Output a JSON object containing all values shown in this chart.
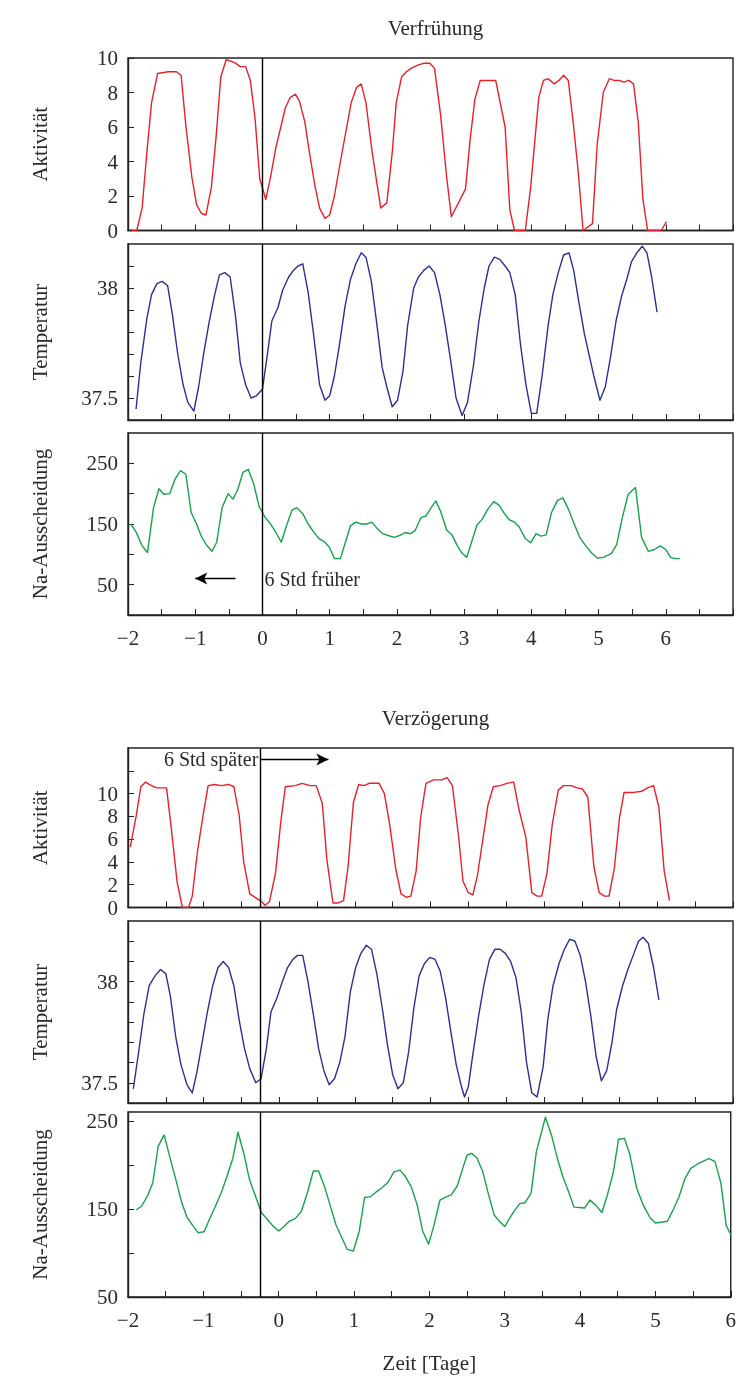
{
  "chart_data": [
    {
      "type": "line",
      "title": "Verfrühung",
      "ylabel": "Aktivität",
      "tick_labels": "y",
      "xlim": [
        -2,
        7
      ],
      "xticks": [
        -2,
        {
          "value": -1.5,
          "label": null
        },
        -1,
        {
          "value": -0.5,
          "label": null
        },
        0,
        {
          "value": 0.5,
          "label": null
        },
        1,
        {
          "value": 1.5,
          "label": null
        },
        2,
        {
          "value": 2.5,
          "label": null
        },
        3,
        {
          "value": 3.5,
          "label": null
        },
        4,
        {
          "value": 4.5,
          "label": null
        },
        5,
        {
          "value": 5.5,
          "label": null
        },
        6,
        {
          "value": 6.5,
          "label": null
        },
        {
          "value": 7,
          "label": null
        }
      ],
      "ylim": [
        0,
        10
      ],
      "yticks": [
        0,
        2,
        4,
        6,
        8,
        10
      ],
      "ref_lines": [
        {
          "axis": "x",
          "value": 0,
          "color": "#000000"
        }
      ],
      "series": [
        {
          "color": "#e8202a",
          "x": [
            -1.94,
            -1.87,
            -1.79,
            -1.72,
            -1.65,
            -1.56,
            -1.4,
            -1.28,
            -1.21,
            -1.14,
            -1.05,
            -0.98,
            -0.91,
            -0.84,
            -0.76,
            -0.69,
            -0.62,
            -0.54,
            -0.46,
            -0.4,
            -0.33,
            -0.25,
            -0.18,
            -0.11,
            -0.04,
            0.05,
            0.12,
            0.2,
            0.34,
            0.41,
            0.49,
            0.55,
            0.63,
            0.7,
            0.78,
            0.85,
            0.93,
            1.0,
            1.07,
            1.16,
            1.32,
            1.4,
            1.47,
            1.54,
            1.63,
            1.7,
            1.76,
            1.85,
            1.93,
            1.99,
            2.07,
            2.14,
            2.21,
            2.32,
            2.41,
            2.49,
            2.56,
            2.65,
            2.74,
            2.81,
            3.02,
            3.09,
            3.16,
            3.24,
            3.47,
            3.61,
            3.68,
            3.75,
            3.91,
            3.99,
            4.11,
            4.18,
            4.25,
            4.34,
            4.41,
            4.48,
            4.55,
            4.63,
            4.7,
            4.77,
            4.91,
            4.98,
            5.07,
            5.16,
            5.23,
            5.31,
            5.38,
            5.45,
            5.52,
            5.59,
            5.66,
            5.73,
            5.93,
            6.01
          ],
          "values": [
            0,
            0,
            1.3,
            4.5,
            7.4,
            9.1,
            9.2,
            9.2,
            9.0,
            6.1,
            3.1,
            1.5,
            1.0,
            0.9,
            2.5,
            5.4,
            8.9,
            9.9,
            9.8,
            9.7,
            9.5,
            9.5,
            8.7,
            6.5,
            3.0,
            1.8,
            3.1,
            4.8,
            7.1,
            7.7,
            7.9,
            7.5,
            6.3,
            4.5,
            2.6,
            1.3,
            0.7,
            0.9,
            2.0,
            4.0,
            7.4,
            8.3,
            8.5,
            7.4,
            4.6,
            2.8,
            1.3,
            1.6,
            4.5,
            7.4,
            8.9,
            9.2,
            9.4,
            9.6,
            9.7,
            9.7,
            9.4,
            6.7,
            3.1,
            0.8,
            2.4,
            5.3,
            7.6,
            8.7,
            8.7,
            6.0,
            1.2,
            0,
            0,
            2.5,
            7.7,
            8.7,
            8.8,
            8.5,
            8.7,
            9.0,
            8.7,
            6.0,
            3.3,
            0,
            0.4,
            5.0,
            8.0,
            8.8,
            8.7,
            8.7,
            8.6,
            8.7,
            8.5,
            6.3,
            1.8,
            0,
            0,
            0.5
          ]
        }
      ]
    },
    {
      "type": "line",
      "ylabel": "Temperatur",
      "tick_labels": "y",
      "xlim": [
        -2,
        7
      ],
      "xticks": [
        -2,
        {
          "value": -1.5,
          "label": null
        },
        -1,
        {
          "value": -0.5,
          "label": null
        },
        0,
        {
          "value": 0.5,
          "label": null
        },
        1,
        {
          "value": 1.5,
          "label": null
        },
        2,
        {
          "value": 2.5,
          "label": null
        },
        3,
        {
          "value": 3.5,
          "label": null
        },
        4,
        {
          "value": 4.5,
          "label": null
        },
        5,
        {
          "value": 5.5,
          "label": null
        },
        6,
        {
          "value": 6.5,
          "label": null
        },
        {
          "value": 7,
          "label": null
        }
      ],
      "ylim": [
        37.4,
        38.2
      ],
      "yticks": [
        37.5,
        {
          "value": 37.6,
          "label": null
        },
        {
          "value": 37.7,
          "label": null
        },
        {
          "value": 37.8,
          "label": null
        },
        {
          "value": 37.9,
          "label": null
        },
        38,
        {
          "value": 38.1,
          "label": null
        }
      ],
      "ref_lines": [
        {
          "axis": "x",
          "value": 0,
          "color": "#000000"
        }
      ],
      "series": [
        {
          "color": "#2b2f96",
          "x": [
            -1.88,
            -1.81,
            -1.72,
            -1.65,
            -1.57,
            -1.49,
            -1.41,
            -1.34,
            -1.26,
            -1.18,
            -1.11,
            -1.02,
            -0.95,
            -0.87,
            -0.79,
            -0.71,
            -0.64,
            -0.56,
            -0.48,
            -0.4,
            -0.33,
            -0.25,
            -0.17,
            -0.09,
            0,
            0.07,
            0.14,
            0.23,
            0.3,
            0.39,
            0.46,
            0.53,
            0.6,
            0.68,
            0.76,
            0.85,
            0.93,
            1.0,
            1.07,
            1.14,
            1.23,
            1.31,
            1.39,
            1.47,
            1.54,
            1.62,
            1.7,
            1.78,
            1.85,
            1.93,
            2.01,
            2.09,
            2.16,
            2.25,
            2.32,
            2.4,
            2.48,
            2.56,
            2.64,
            2.72,
            2.8,
            2.88,
            2.97,
            3.05,
            3.14,
            3.22,
            3.3,
            3.37,
            3.45,
            3.53,
            3.61,
            3.68,
            3.76,
            3.84,
            3.92,
            4.0,
            4.08,
            4.16,
            4.25,
            4.32,
            4.4,
            4.48,
            4.56,
            4.63,
            4.71,
            4.79,
            4.93,
            5.02,
            5.1,
            5.18,
            5.26,
            5.34,
            5.42,
            5.49,
            5.57,
            5.65,
            5.72,
            5.79,
            5.87
          ],
          "values": [
            37.45,
            37.66,
            37.86,
            37.97,
            38.02,
            38.03,
            38.01,
            37.88,
            37.7,
            37.56,
            37.48,
            37.44,
            37.55,
            37.71,
            37.85,
            37.97,
            38.06,
            38.07,
            38.05,
            37.87,
            37.66,
            37.56,
            37.5,
            37.51,
            37.54,
            37.69,
            37.85,
            37.91,
            37.99,
            38.05,
            38.08,
            38.1,
            38.11,
            37.98,
            37.79,
            37.56,
            37.49,
            37.51,
            37.6,
            37.73,
            37.92,
            38.04,
            38.11,
            38.16,
            38.14,
            38.03,
            37.84,
            37.64,
            37.55,
            37.46,
            37.49,
            37.62,
            37.83,
            38.0,
            38.05,
            38.08,
            38.1,
            38.07,
            37.97,
            37.83,
            37.67,
            37.5,
            37.42,
            37.48,
            37.65,
            37.85,
            38.0,
            38.1,
            38.14,
            38.13,
            38.1,
            38.07,
            37.97,
            37.74,
            37.56,
            37.43,
            37.43,
            37.6,
            37.83,
            37.97,
            38.07,
            38.15,
            38.16,
            38.08,
            37.93,
            37.79,
            37.6,
            37.49,
            37.55,
            37.69,
            37.85,
            37.96,
            38.04,
            38.12,
            38.16,
            38.19,
            38.16,
            38.05,
            37.89
          ]
        }
      ]
    },
    {
      "type": "line",
      "ylabel": "Na-Ausscheidung",
      "xlim": [
        -2,
        7
      ],
      "xticks": [
        {
          "value": -2,
          "label": "−2"
        },
        {
          "value": -1.5,
          "label": null
        },
        {
          "value": -1,
          "label": "−1"
        },
        {
          "value": -0.5,
          "label": null
        },
        0,
        {
          "value": 0.5,
          "label": null
        },
        1,
        {
          "value": 1.5,
          "label": null
        },
        2,
        {
          "value": 2.5,
          "label": null
        },
        3,
        {
          "value": 3.5,
          "label": null
        },
        4,
        {
          "value": 4.5,
          "label": null
        },
        5,
        {
          "value": 5.5,
          "label": null
        },
        6,
        {
          "value": 6.5,
          "label": null
        },
        {
          "value": 7,
          "label": null
        }
      ],
      "ylim": [
        0,
        300
      ],
      "yticks": [
        50,
        {
          "value": 100,
          "label": null
        },
        150,
        {
          "value": 200,
          "label": null
        },
        250
      ],
      "ref_lines": [
        {
          "axis": "x",
          "value": 0,
          "color": "#000000"
        }
      ],
      "annotations": [
        {
          "text": "6 Std früher",
          "x": 0,
          "y": 60
        }
      ],
      "series": [
        {
          "color": "#16a34a",
          "x": [
            -1.96,
            -1.88,
            -1.79,
            -1.71,
            -1.62,
            -1.54,
            -1.47,
            -1.38,
            -1.3,
            -1.22,
            -1.14,
            -1.06,
            -0.98,
            -0.91,
            -0.83,
            -0.75,
            -0.68,
            -0.6,
            -0.51,
            -0.44,
            -0.37,
            -0.29,
            -0.21,
            -0.13,
            -0.05,
            0.04,
            0.12,
            0.2,
            0.28,
            0.36,
            0.44,
            0.51,
            0.6,
            0.68,
            0.76,
            0.84,
            0.93,
            1.0,
            1.07,
            1.16,
            1.24,
            1.31,
            1.39,
            1.47,
            1.55,
            1.63,
            1.71,
            1.79,
            1.87,
            1.96,
            2.04,
            2.12,
            2.2,
            2.27,
            2.36,
            2.43,
            2.51,
            2.58,
            2.65,
            2.74,
            2.82,
            2.89,
            2.96,
            3.04,
            3.11,
            3.19,
            3.27,
            3.35,
            3.44,
            3.52,
            3.6,
            3.67,
            3.75,
            3.82,
            3.91,
            3.99,
            4.07,
            4.14,
            4.22,
            4.3,
            4.39,
            4.47,
            4.55,
            4.63,
            4.72,
            4.81,
            4.89,
            4.98,
            5.07,
            5.19,
            5.27,
            5.35,
            5.44,
            5.55,
            5.64,
            5.74,
            5.83,
            5.92,
            6.0,
            6.07,
            6.14,
            6.21
          ],
          "values": [
            150,
            137,
            114,
            103,
            177,
            208,
            199,
            200,
            224,
            238,
            232,
            169,
            150,
            130,
            115,
            105,
            120,
            177,
            200,
            191,
            206,
            235,
            240,
            216,
            179,
            161,
            150,
            136,
            120,
            148,
            173,
            177,
            167,
            150,
            137,
            126,
            120,
            111,
            93,
            93,
            122,
            147,
            153,
            150,
            150,
            153,
            142,
            134,
            131,
            128,
            131,
            136,
            134,
            139,
            161,
            163,
            177,
            188,
            171,
            140,
            132,
            116,
            103,
            95,
            120,
            148,
            158,
            174,
            187,
            181,
            167,
            157,
            153,
            145,
            126,
            119,
            134,
            130,
            132,
            169,
            189,
            193,
            175,
            152,
            128,
            114,
            103,
            94,
            95,
            101,
            116,
            159,
            199,
            210,
            128,
            105,
            108,
            114,
            108,
            95,
            93,
            93
          ]
        }
      ]
    },
    {
      "type": "line",
      "title": "Verzögerung",
      "ylabel": "Aktivität",
      "tick_labels": "y",
      "xlim": [
        -2,
        6
      ],
      "xticks": [
        -2,
        {
          "value": -1.5,
          "label": null
        },
        -1,
        {
          "value": -0.5,
          "label": null
        },
        0,
        {
          "value": 0.5,
          "label": null
        },
        1,
        {
          "value": 1.5,
          "label": null
        },
        2,
        {
          "value": 2.5,
          "label": null
        },
        3,
        {
          "value": 3.5,
          "label": null
        },
        4,
        {
          "value": 4.5,
          "label": null
        },
        5,
        {
          "value": 5.5,
          "label": null
        },
        6
      ],
      "ylim": [
        0,
        14
      ],
      "yticks": [
        0,
        2,
        4,
        6,
        8,
        10,
        {
          "value": 12,
          "label": null
        }
      ],
      "ref_lines": [
        {
          "axis": "x",
          "value": -0.25,
          "color": "#000000"
        }
      ],
      "annotations": [
        {
          "text": "6 Std später",
          "x": -0.25,
          "y": 13
        }
      ],
      "series": [
        {
          "color": "#e8202a",
          "x": [
            -1.97,
            -1.89,
            -1.83,
            -1.77,
            -1.69,
            -1.62,
            -1.49,
            -1.43,
            -1.35,
            -1.28,
            -1.2,
            -1.15,
            -1.08,
            -1.0,
            -0.94,
            -0.86,
            -0.76,
            -0.67,
            -0.6,
            -0.53,
            -0.47,
            -0.39,
            -0.23,
            -0.19,
            -0.13,
            -0.05,
            0.02,
            0.08,
            0.21,
            0.3,
            0.41,
            0.49,
            0.57,
            0.63,
            0.71,
            0.78,
            0.85,
            0.91,
            0.98,
            1.05,
            1.12,
            1.19,
            1.32,
            1.39,
            1.46,
            1.54,
            1.61,
            1.68,
            1.74,
            1.81,
            1.87,
            1.94,
            2.04,
            2.15,
            2.22,
            2.29,
            2.37,
            2.43,
            2.5,
            2.56,
            2.62,
            2.7,
            2.76,
            2.83,
            2.92,
            3.01,
            3.1,
            3.17,
            3.26,
            3.34,
            3.41,
            3.47,
            3.54,
            3.61,
            3.69,
            3.76,
            3.86,
            3.94,
            4.01,
            4.08,
            4.16,
            4.23,
            4.3,
            4.36,
            4.43,
            4.5,
            4.56,
            4.69,
            4.79,
            4.87,
            4.95,
            5.02,
            5.09,
            5.16
          ],
          "values": [
            5.3,
            8.1,
            10.6,
            11.0,
            10.7,
            10.5,
            10.5,
            7.1,
            2.2,
            0,
            0,
            1.0,
            5.0,
            8.4,
            10.7,
            10.8,
            10.7,
            10.8,
            10.6,
            8.1,
            4.0,
            1.2,
            0.5,
            0.2,
            0.5,
            3.0,
            7.5,
            10.6,
            10.7,
            10.9,
            10.7,
            10.7,
            9.1,
            4.2,
            0.4,
            0.4,
            0.6,
            3.6,
            9.2,
            10.8,
            10.7,
            10.9,
            10.9,
            10.0,
            7.3,
            3.4,
            1.2,
            0.9,
            1.0,
            3.2,
            7.9,
            10.9,
            11.2,
            11.2,
            11.4,
            10.7,
            6.3,
            2.3,
            1.3,
            1.1,
            2.8,
            6.3,
            9.0,
            10.6,
            10.7,
            10.9,
            11.0,
            8.6,
            6.2,
            1.3,
            1.0,
            1.0,
            3.0,
            7.3,
            10.3,
            10.7,
            10.7,
            10.5,
            10.4,
            9.7,
            3.6,
            1.3,
            1.0,
            1.0,
            3.4,
            7.9,
            10.1,
            10.1,
            10.2,
            10.5,
            10.7,
            8.8,
            3.2,
            0.6
          ]
        }
      ]
    },
    {
      "type": "line",
      "ylabel": "Temperatur",
      "tick_labels": "y",
      "xlim": [
        -2,
        6
      ],
      "xticks": [
        -2,
        {
          "value": -1.5,
          "label": null
        },
        -1,
        {
          "value": -0.5,
          "label": null
        },
        0,
        {
          "value": 0.5,
          "label": null
        },
        1,
        {
          "value": 1.5,
          "label": null
        },
        2,
        {
          "value": 2.5,
          "label": null
        },
        3,
        {
          "value": 3.5,
          "label": null
        },
        4,
        {
          "value": 4.5,
          "label": null
        },
        5,
        {
          "value": 5.5,
          "label": null
        },
        6
      ],
      "ylim": [
        37.4,
        38.3
      ],
      "yticks": [
        37.5,
        {
          "value": 37.6,
          "label": null
        },
        {
          "value": 37.7,
          "label": null
        },
        {
          "value": 37.8,
          "label": null
        },
        {
          "value": 37.9,
          "label": null
        },
        38,
        {
          "value": 38.1,
          "label": null
        },
        {
          "value": 38.2,
          "label": null
        }
      ],
      "ref_lines": [
        {
          "axis": "x",
          "value": -0.25,
          "color": "#000000"
        }
      ],
      "series": [
        {
          "color": "#2b2f96",
          "x": [
            -1.93,
            -1.86,
            -1.79,
            -1.72,
            -1.64,
            -1.57,
            -1.5,
            -1.44,
            -1.37,
            -1.3,
            -1.22,
            -1.15,
            -1.09,
            -1.02,
            -0.95,
            -0.88,
            -0.81,
            -0.74,
            -0.67,
            -0.6,
            -0.53,
            -0.46,
            -0.39,
            -0.31,
            -0.24,
            -0.17,
            -0.11,
            -0.03,
            0.04,
            0.11,
            0.18,
            0.24,
            0.31,
            0.38,
            0.45,
            0.52,
            0.59,
            0.66,
            0.73,
            0.8,
            0.87,
            0.94,
            1.01,
            1.08,
            1.15,
            1.22,
            1.29,
            1.37,
            1.43,
            1.5,
            1.57,
            1.64,
            1.71,
            1.78,
            1.85,
            1.92,
            1.99,
            2.06,
            2.13,
            2.2,
            2.27,
            2.34,
            2.41,
            2.45,
            2.5,
            2.56,
            2.64,
            2.71,
            2.78,
            2.85,
            2.92,
            2.99,
            3.06,
            3.13,
            3.2,
            3.27,
            3.34,
            3.41,
            3.49,
            3.55,
            3.62,
            3.7,
            3.77,
            3.84,
            3.91,
            3.98,
            4.05,
            4.12,
            4.19,
            4.26,
            4.33,
            4.4,
            4.46,
            4.54,
            4.61,
            4.68,
            4.75,
            4.81,
            4.88,
            4.95,
            5.02
          ],
          "values": [
            37.47,
            37.65,
            37.84,
            37.98,
            38.03,
            38.06,
            38.04,
            37.93,
            37.73,
            37.59,
            37.49,
            37.45,
            37.55,
            37.7,
            37.85,
            37.98,
            38.07,
            38.1,
            38.07,
            37.98,
            37.81,
            37.67,
            37.57,
            37.5,
            37.52,
            37.67,
            37.85,
            37.92,
            38.0,
            38.07,
            38.11,
            38.13,
            38.13,
            38.0,
            37.84,
            37.67,
            37.56,
            37.49,
            37.52,
            37.6,
            37.73,
            37.95,
            38.07,
            38.14,
            38.18,
            38.16,
            38.04,
            37.85,
            37.69,
            37.54,
            37.47,
            37.5,
            37.65,
            37.87,
            38.03,
            38.09,
            38.12,
            38.11,
            38.05,
            37.92,
            37.75,
            37.59,
            37.48,
            37.43,
            37.48,
            37.64,
            37.84,
            37.99,
            38.11,
            38.16,
            38.16,
            38.14,
            38.1,
            38.02,
            37.85,
            37.6,
            37.45,
            37.43,
            37.58,
            37.81,
            37.98,
            38.09,
            38.16,
            38.21,
            38.2,
            38.13,
            38.0,
            37.83,
            37.63,
            37.51,
            37.56,
            37.7,
            37.86,
            37.98,
            38.06,
            38.13,
            38.2,
            38.22,
            38.19,
            38.07,
            37.91
          ]
        }
      ]
    },
    {
      "type": "line",
      "ylabel": "Na-Ausscheidung",
      "xlabel": "Zeit [Tage]",
      "xlim": [
        -2,
        6
      ],
      "xticks": [
        {
          "value": -2,
          "label": "−2"
        },
        {
          "value": -1.5,
          "label": null
        },
        {
          "value": -1,
          "label": "−1"
        },
        {
          "value": -0.5,
          "label": null
        },
        0,
        {
          "value": 0.5,
          "label": null
        },
        1,
        {
          "value": 1.5,
          "label": null
        },
        2,
        {
          "value": 2.5,
          "label": null
        },
        3,
        {
          "value": 3.5,
          "label": null
        },
        4,
        {
          "value": 4.5,
          "label": null
        },
        5,
        {
          "value": 5.5,
          "label": null
        },
        6
      ],
      "ylim": [
        50,
        260
      ],
      "yticks": [
        50,
        {
          "value": 100,
          "label": null
        },
        150,
        {
          "value": 200,
          "label": null
        },
        250
      ],
      "ref_lines": [
        {
          "axis": "x",
          "value": -0.25,
          "color": "#000000"
        }
      ],
      "series": [
        {
          "color": "#16a34a",
          "x": [
            -1.89,
            -1.82,
            -1.74,
            -1.67,
            -1.6,
            -1.52,
            -1.44,
            -1.37,
            -1.29,
            -1.22,
            -1.14,
            -1.07,
            -0.99,
            -0.92,
            -0.84,
            -0.76,
            -0.69,
            -0.61,
            -0.54,
            -0.46,
            -0.39,
            -0.31,
            -0.23,
            -0.15,
            -0.08,
            0,
            0.07,
            0.14,
            0.22,
            0.3,
            0.38,
            0.46,
            0.53,
            0.61,
            0.69,
            0.76,
            0.84,
            0.91,
            0.99,
            1.07,
            1.14,
            1.22,
            1.29,
            1.37,
            1.45,
            1.53,
            1.61,
            1.68,
            1.76,
            1.84,
            1.91,
            1.99,
            2.06,
            2.14,
            2.21,
            2.29,
            2.37,
            2.45,
            2.5,
            2.56,
            2.63,
            2.71,
            2.78,
            2.86,
            2.93,
            3.0,
            3.07,
            3.13,
            3.2,
            3.27,
            3.35,
            3.42,
            3.54,
            3.62,
            3.7,
            3.77,
            3.85,
            3.92,
            4.06,
            4.13,
            4.21,
            4.29,
            4.36,
            4.44,
            4.51,
            4.59,
            4.66,
            4.75,
            4.84,
            4.93,
            5.0,
            5.16,
            5.23,
            5.31,
            5.39,
            5.47,
            5.56,
            5.63,
            5.71,
            5.79,
            5.87,
            5.94,
            6.0
          ],
          "values": [
            149,
            153,
            165,
            180,
            221,
            234,
            207,
            185,
            158,
            141,
            131,
            123,
            124,
            138,
            153,
            169,
            186,
            207,
            237,
            212,
            184,
            165,
            146,
            138,
            131,
            125,
            130,
            136,
            139,
            147,
            168,
            193,
            193,
            175,
            152,
            132,
            117,
            104,
            102,
            125,
            163,
            164,
            169,
            174,
            180,
            192,
            194,
            187,
            175,
            154,
            125,
            110,
            131,
            160,
            163,
            166,
            176,
            198,
            211,
            213,
            208,
            192,
            168,
            143,
            136,
            130,
            140,
            148,
            156,
            157,
            168,
            215,
            254,
            234,
            207,
            187,
            169,
            152,
            151,
            160,
            154,
            146,
            165,
            191,
            229,
            230,
            212,
            174,
            154,
            140,
            134,
            136,
            148,
            163,
            184,
            196,
            201,
            204,
            207,
            204,
            179,
            131,
            121
          ]
        }
      ]
    }
  ]
}
